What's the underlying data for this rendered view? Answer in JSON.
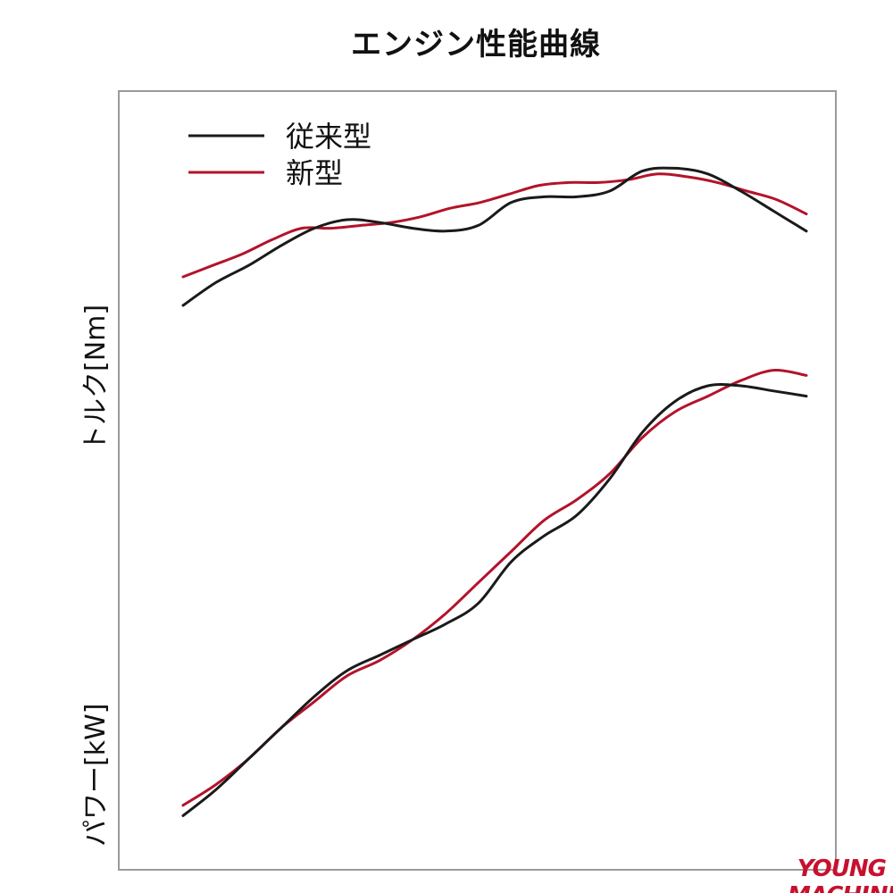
{
  "chart_data": {
    "type": "line",
    "title": "エンジン性能曲線",
    "xlabel": "",
    "x": [
      0,
      4,
      8,
      12,
      16,
      20,
      24,
      28,
      32,
      36,
      40,
      44,
      48,
      52,
      56,
      60,
      64,
      68,
      72,
      76,
      80,
      84,
      88,
      92,
      96,
      100
    ],
    "panels": [
      {
        "name": "torque",
        "ylabel": "トルク[Nm]",
        "series": [
          {
            "name": "従来型",
            "color": "#1a1a1a",
            "values": [
              40,
              48,
              54,
              61,
              67,
              70,
              69,
              67,
              66,
              68,
              76,
              78,
              78,
              80,
              87,
              88,
              86,
              80,
              73,
              66
            ]
          },
          {
            "name": "新型",
            "color": "#b3132b",
            "values": [
              50,
              54,
              58,
              63,
              67,
              67,
              68,
              69,
              71,
              74,
              76,
              79,
              82,
              83,
              83,
              84,
              86,
              85,
              83,
              80,
              77,
              72
            ]
          }
        ]
      },
      {
        "name": "power",
        "ylabel": "パワー[kW]",
        "series": [
          {
            "name": "従来型",
            "color": "#1a1a1a",
            "values": [
              2,
              7,
              13,
              19,
              25,
              30,
              33,
              36,
              39,
              43,
              51,
              56,
              60,
              67,
              76,
              82,
              85,
              85,
              84,
              83
            ]
          },
          {
            "name": "新型",
            "color": "#b3132b",
            "values": [
              4,
              8,
              13,
              19,
              24,
              29,
              32,
              36,
              41,
              47,
              53,
              59,
              63,
              68,
              75,
              80,
              83,
              86,
              88,
              87
            ]
          }
        ]
      }
    ],
    "legend": {
      "placement": "top-left",
      "entries": [
        "従来型",
        "新型"
      ]
    },
    "grid": false
  },
  "watermark": "YOUNG MACHINE"
}
